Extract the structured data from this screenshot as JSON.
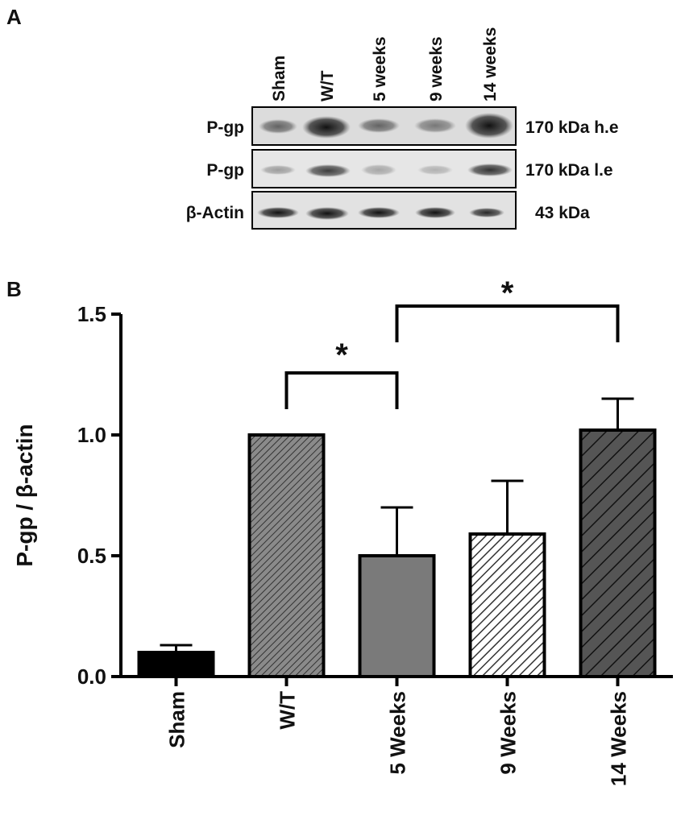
{
  "panel_a": {
    "label": "A",
    "lanes": [
      "Sham",
      "W/T",
      "5 weeks",
      "9 weeks",
      "14 weeks"
    ],
    "rows": [
      {
        "label": "P-gp",
        "size": "170 kDa h.e"
      },
      {
        "label": "P-gp",
        "size": "170 kDa l.e"
      },
      {
        "label": "β-Actin",
        "size": "43 kDa"
      }
    ]
  },
  "panel_b_label": "B",
  "chart_data": {
    "type": "bar",
    "ylabel": "P-gp / β-actin",
    "categories": [
      "Sham",
      "W/T",
      "5 Weeks",
      "9 Weeks",
      "14 Weeks"
    ],
    "values": [
      0.1,
      1.0,
      0.5,
      0.59,
      1.02
    ],
    "errors": [
      0.03,
      0,
      0.2,
      0.22,
      0.13
    ],
    "colors": [
      "#000000",
      "#8a8a8a",
      "#7a7a7a",
      "#ffffff",
      "#555555"
    ],
    "hatch": [
      false,
      true,
      false,
      true,
      true
    ],
    "ylim": [
      0,
      1.5
    ],
    "yticks": [
      {
        "value": 0,
        "label": "0.0"
      },
      0.5,
      {
        "value": 1,
        "label": "1.0"
      },
      1.5
    ],
    "annotations": [
      "*",
      "*"
    ]
  }
}
